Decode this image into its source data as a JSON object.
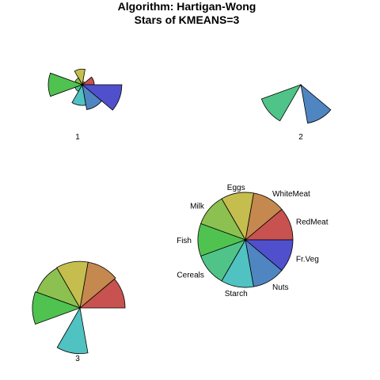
{
  "title": [
    "Algorithm: Hartigan-Wong",
    "Stars of KMEANS=3"
  ],
  "chart_data": {
    "type": "stars",
    "title": "Algorithm: Hartigan-Wong\nStars of KMEANS=3",
    "variables": [
      "RedMeat",
      "WhiteMeat",
      "Eggs",
      "Milk",
      "Fish",
      "Cereals",
      "Starch",
      "Nuts",
      "Fr.Veg"
    ],
    "colors": [
      "#C8524F",
      "#C5884F",
      "#C5BE4F",
      "#8CC050",
      "#50C250",
      "#50C488",
      "#50C2C1",
      "#4F86C1",
      "#5050CC"
    ],
    "stars": [
      {
        "label": "1",
        "values": [
          0.26,
          0.07,
          0.34,
          0.17,
          0.74,
          0.17,
          0.45,
          0.55,
          0.86
        ]
      },
      {
        "label": "2",
        "values": [
          0,
          0,
          0,
          0,
          0,
          0.91,
          0,
          0.85,
          0
        ]
      },
      {
        "label": "3",
        "values": [
          0.95,
          0.98,
          0.98,
          0.97,
          1.0,
          0,
          0.96,
          0,
          0
        ]
      }
    ],
    "key": {
      "radius": 1.0
    }
  }
}
